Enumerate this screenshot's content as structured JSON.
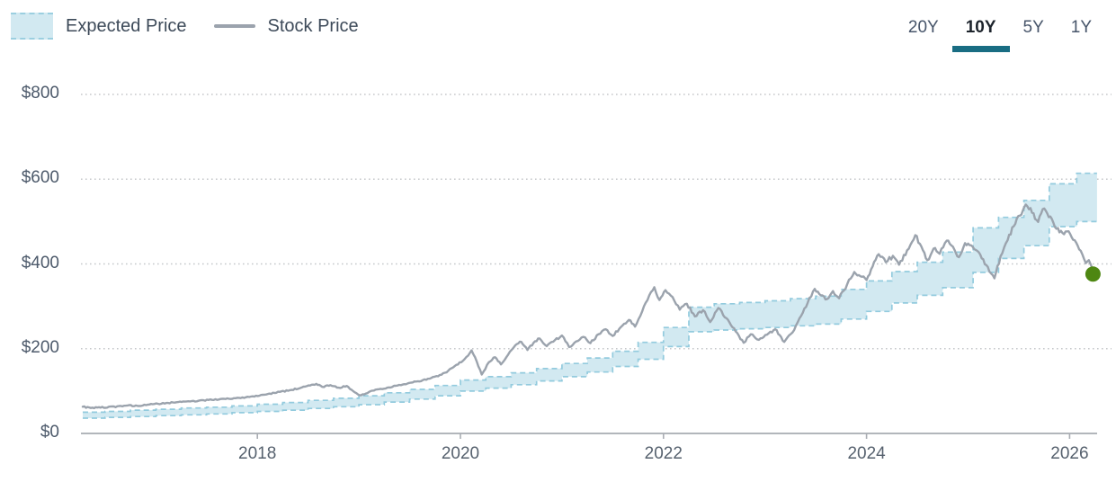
{
  "legend": {
    "expected": {
      "label": "Expected Price",
      "swatch": "band"
    },
    "stock": {
      "label": "Stock Price",
      "swatch": "line"
    }
  },
  "range_selector": {
    "options": [
      {
        "id": "20y",
        "label": "20Y",
        "selected": false
      },
      {
        "id": "10y",
        "label": "10Y",
        "selected": true
      },
      {
        "id": "5y",
        "label": "5Y",
        "selected": false
      },
      {
        "id": "1y",
        "label": "1Y",
        "selected": false
      }
    ]
  },
  "y_axis": {
    "tick_labels": [
      "$800",
      "$600",
      "$400",
      "$200",
      "$0"
    ],
    "tick_values": [
      800,
      600,
      400,
      200,
      0
    ]
  },
  "x_axis": {
    "tick_labels": [
      "2018",
      "2020",
      "2022",
      "2024",
      "2026"
    ],
    "tick_values": [
      2018,
      2020,
      2022,
      2024,
      2026
    ]
  },
  "colors": {
    "band_fill": "#d2e9f1",
    "band_edge": "#93cbde",
    "stock_line": "#9ba3ad",
    "marker_green": "#4e8712",
    "selected_underline": "#196d83",
    "grid_dotted": "#c5c7ca",
    "axis_line": "#b2b6bb",
    "tick_mark": "#a9adb3",
    "text_dark": "#3d4a59",
    "text_muted": "#4d5a6b"
  },
  "chart_data": {
    "type": "line",
    "title": "",
    "xlabel": "",
    "ylabel": "",
    "x_range": [
      2016.28,
      2026.28
    ],
    "y_range": [
      0,
      800
    ],
    "grid": "horizontal-dotted",
    "legend_position": "top-left",
    "series": [
      {
        "name": "Stock Price",
        "type": "line",
        "points": [
          [
            2016.28,
            63
          ],
          [
            2016.36,
            60
          ],
          [
            2016.44,
            62
          ],
          [
            2016.52,
            61
          ],
          [
            2016.62,
            64
          ],
          [
            2016.72,
            66
          ],
          [
            2016.82,
            65
          ],
          [
            2016.92,
            68
          ],
          [
            2017.02,
            70
          ],
          [
            2017.12,
            72
          ],
          [
            2017.22,
            74
          ],
          [
            2017.32,
            76
          ],
          [
            2017.42,
            77
          ],
          [
            2017.52,
            79
          ],
          [
            2017.62,
            80
          ],
          [
            2017.72,
            82
          ],
          [
            2017.82,
            84
          ],
          [
            2017.92,
            86
          ],
          [
            2018.02,
            89
          ],
          [
            2018.12,
            94
          ],
          [
            2018.22,
            98
          ],
          [
            2018.32,
            102
          ],
          [
            2018.42,
            107
          ],
          [
            2018.52,
            113
          ],
          [
            2018.58,
            117
          ],
          [
            2018.64,
            110
          ],
          [
            2018.72,
            114
          ],
          [
            2018.8,
            108
          ],
          [
            2018.88,
            112
          ],
          [
            2018.96,
            97
          ],
          [
            2019.02,
            90
          ],
          [
            2019.1,
            98
          ],
          [
            2019.18,
            104
          ],
          [
            2019.28,
            108
          ],
          [
            2019.38,
            113
          ],
          [
            2019.48,
            118
          ],
          [
            2019.58,
            123
          ],
          [
            2019.68,
            129
          ],
          [
            2019.78,
            135
          ],
          [
            2019.88,
            148
          ],
          [
            2019.96,
            162
          ],
          [
            2020.04,
            175
          ],
          [
            2020.11,
            196
          ],
          [
            2020.16,
            170
          ],
          [
            2020.21,
            139
          ],
          [
            2020.28,
            168
          ],
          [
            2020.34,
            180
          ],
          [
            2020.4,
            163
          ],
          [
            2020.47,
            186
          ],
          [
            2020.54,
            208
          ],
          [
            2020.6,
            216
          ],
          [
            2020.66,
            197
          ],
          [
            2020.72,
            214
          ],
          [
            2020.78,
            224
          ],
          [
            2020.85,
            206
          ],
          [
            2020.93,
            220
          ],
          [
            2021.0,
            231
          ],
          [
            2021.07,
            204
          ],
          [
            2021.14,
            217
          ],
          [
            2021.21,
            228
          ],
          [
            2021.28,
            213
          ],
          [
            2021.36,
            234
          ],
          [
            2021.43,
            246
          ],
          [
            2021.5,
            230
          ],
          [
            2021.58,
            251
          ],
          [
            2021.66,
            268
          ],
          [
            2021.72,
            252
          ],
          [
            2021.79,
            288
          ],
          [
            2021.86,
            326
          ],
          [
            2021.91,
            345
          ],
          [
            2021.96,
            315
          ],
          [
            2022.02,
            338
          ],
          [
            2022.09,
            322
          ],
          [
            2022.16,
            292
          ],
          [
            2022.23,
            306
          ],
          [
            2022.31,
            276
          ],
          [
            2022.39,
            291
          ],
          [
            2022.46,
            263
          ],
          [
            2022.54,
            296
          ],
          [
            2022.62,
            272
          ],
          [
            2022.71,
            241
          ],
          [
            2022.79,
            214
          ],
          [
            2022.86,
            234
          ],
          [
            2022.94,
            221
          ],
          [
            2023.02,
            233
          ],
          [
            2023.1,
            246
          ],
          [
            2023.19,
            216
          ],
          [
            2023.27,
            238
          ],
          [
            2023.34,
            272
          ],
          [
            2023.42,
            308
          ],
          [
            2023.49,
            341
          ],
          [
            2023.55,
            326
          ],
          [
            2023.61,
            317
          ],
          [
            2023.67,
            336
          ],
          [
            2023.73,
            319
          ],
          [
            2023.81,
            352
          ],
          [
            2023.88,
            381
          ],
          [
            2023.94,
            371
          ],
          [
            2024.0,
            362
          ],
          [
            2024.06,
            394
          ],
          [
            2024.12,
            423
          ],
          [
            2024.19,
            404
          ],
          [
            2024.26,
            419
          ],
          [
            2024.32,
            398
          ],
          [
            2024.4,
            432
          ],
          [
            2024.48,
            468
          ],
          [
            2024.54,
            441
          ],
          [
            2024.6,
            409
          ],
          [
            2024.66,
            436
          ],
          [
            2024.72,
            424
          ],
          [
            2024.79,
            455
          ],
          [
            2024.85,
            441
          ],
          [
            2024.91,
            416
          ],
          [
            2024.97,
            449
          ],
          [
            2025.03,
            444
          ],
          [
            2025.09,
            431
          ],
          [
            2025.15,
            411
          ],
          [
            2025.21,
            382
          ],
          [
            2025.26,
            366
          ],
          [
            2025.32,
            418
          ],
          [
            2025.39,
            456
          ],
          [
            2025.45,
            489
          ],
          [
            2025.51,
            514
          ],
          [
            2025.57,
            540
          ],
          [
            2025.63,
            521
          ],
          [
            2025.69,
            499
          ],
          [
            2025.75,
            531
          ],
          [
            2025.81,
            512
          ],
          [
            2025.87,
            483
          ],
          [
            2025.93,
            473
          ],
          [
            2025.99,
            477
          ],
          [
            2026.05,
            456
          ],
          [
            2026.11,
            431
          ],
          [
            2026.16,
            402
          ],
          [
            2026.19,
            409
          ],
          [
            2026.22,
            392
          ],
          [
            2026.24,
            387
          ]
        ]
      },
      {
        "name": "Expected Price",
        "type": "step_band",
        "end_x": 2026.27,
        "steps": [
          [
            2016.28,
            36,
            50
          ],
          [
            2016.5,
            38,
            52
          ],
          [
            2016.75,
            40,
            55
          ],
          [
            2017.0,
            42,
            57
          ],
          [
            2017.25,
            44,
            60
          ],
          [
            2017.5,
            46,
            62
          ],
          [
            2017.75,
            49,
            65
          ],
          [
            2018.0,
            52,
            69
          ],
          [
            2018.25,
            55,
            73
          ],
          [
            2018.5,
            59,
            78
          ],
          [
            2018.75,
            63,
            83
          ],
          [
            2019.0,
            68,
            89
          ],
          [
            2019.25,
            74,
            96
          ],
          [
            2019.5,
            81,
            104
          ],
          [
            2019.75,
            89,
            113
          ],
          [
            2020.0,
            100,
            126
          ],
          [
            2020.25,
            107,
            134
          ],
          [
            2020.5,
            115,
            143
          ],
          [
            2020.75,
            124,
            153
          ],
          [
            2021.0,
            134,
            165
          ],
          [
            2021.25,
            145,
            178
          ],
          [
            2021.5,
            158,
            194
          ],
          [
            2021.75,
            175,
            215
          ],
          [
            2022.0,
            205,
            250
          ],
          [
            2022.25,
            240,
            298
          ],
          [
            2022.5,
            244,
            306
          ],
          [
            2022.75,
            247,
            309
          ],
          [
            2023.0,
            250,
            313
          ],
          [
            2023.25,
            254,
            318
          ],
          [
            2023.5,
            258,
            324
          ],
          [
            2023.75,
            270,
            340
          ],
          [
            2024.0,
            288,
            360
          ],
          [
            2024.25,
            308,
            382
          ],
          [
            2024.5,
            326,
            404
          ],
          [
            2024.75,
            344,
            428
          ],
          [
            2025.05,
            380,
            485
          ],
          [
            2025.3,
            413,
            510
          ],
          [
            2025.55,
            443,
            550
          ],
          [
            2025.8,
            488,
            589
          ],
          [
            2026.07,
            500,
            614
          ]
        ]
      }
    ],
    "marker": {
      "name": "latest-price-dot",
      "x": 2026.23,
      "y": 376,
      "radius": 8.5
    }
  }
}
